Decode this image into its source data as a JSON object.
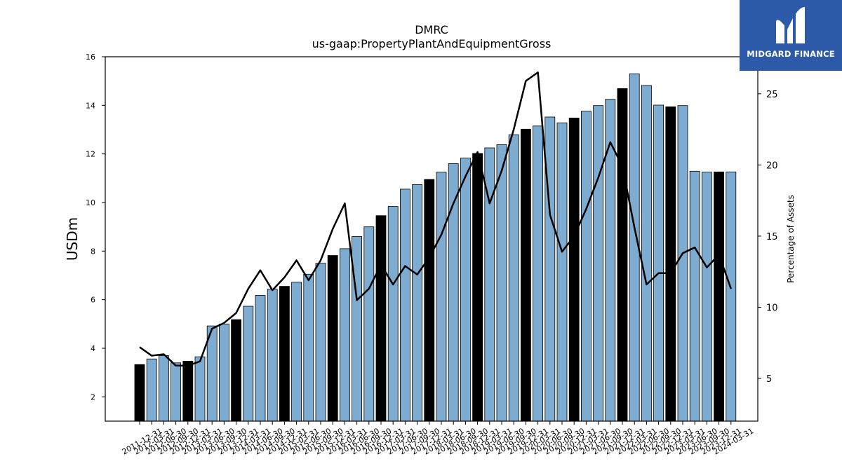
{
  "chart_data": {
    "type": "bar",
    "title": "DMRC",
    "subtitle": "us-gaap:PropertyPlantAndEquipmentGross",
    "ylabel": "USDm",
    "y2label": "Percentage of Assets",
    "ylim": [
      1,
      16
    ],
    "y2lim": [
      2,
      27.6
    ],
    "yticks": [
      2,
      4,
      6,
      8,
      10,
      12,
      14,
      16
    ],
    "y2ticks": [
      5,
      10,
      15,
      20,
      25
    ],
    "grid": false,
    "colors": {
      "bar": "#7eabd0",
      "bar_q4": "#000000",
      "line": "#000000"
    },
    "categories": [
      "2011-12-31",
      "2012-03-31",
      "2012-06-30",
      "2012-09-30",
      "2012-12-31",
      "2013-03-31",
      "2013-06-30",
      "2013-09-30",
      "2013-12-31",
      "2014-03-31",
      "2014-06-30",
      "2014-09-30",
      "2014-12-31",
      "2015-03-31",
      "2015-06-30",
      "2015-09-30",
      "2015-12-31",
      "2016-03-31",
      "2016-06-30",
      "2016-09-30",
      "2016-12-31",
      "2017-03-31",
      "2017-06-30",
      "2017-09-30",
      "2017-12-31",
      "2018-03-31",
      "2018-06-30",
      "2018-09-30",
      "2018-12-31",
      "2019-03-31",
      "2019-06-30",
      "2019-09-30",
      "2019-12-31",
      "2020-03-31",
      "2020-06-30",
      "2020-09-30",
      "2020-12-31",
      "2021-03-31",
      "2021-06-30",
      "2021-09-30",
      "2021-12-31",
      "2022-03-31",
      "2022-06-30",
      "2022-09-30",
      "2022-12-31",
      "2023-03-31",
      "2023-06-30",
      "2023-09-30",
      "2023-12-31",
      "2024-03-31"
    ],
    "series": [
      {
        "axis": "left",
        "values": [
          3.33,
          3.56,
          3.7,
          3.4,
          3.47,
          3.65,
          4.92,
          5.0,
          5.18,
          5.73,
          6.18,
          6.43,
          6.55,
          6.72,
          7.05,
          7.5,
          7.82,
          8.1,
          8.6,
          9.0,
          9.46,
          9.84,
          10.55,
          10.74,
          10.95,
          11.25,
          11.6,
          11.83,
          12.02,
          12.25,
          12.38,
          12.79,
          13.02,
          13.15,
          13.52,
          13.28,
          13.48,
          13.76,
          13.99,
          14.25,
          14.69,
          15.3,
          14.82,
          14.01,
          13.94,
          13.99,
          11.29,
          11.25,
          11.26,
          11.26
        ]
      },
      {
        "axis": "right",
        "type": "line",
        "values": [
          7.2,
          6.6,
          6.7,
          5.9,
          5.9,
          6.2,
          8.5,
          8.9,
          9.6,
          11.3,
          12.6,
          11.2,
          12.1,
          13.3,
          11.9,
          13.3,
          15.5,
          17.3,
          10.5,
          11.3,
          13.0,
          11.6,
          12.9,
          12.3,
          13.5,
          15.1,
          17.3,
          19.2,
          20.9,
          17.3,
          19.6,
          22.5,
          25.9,
          26.5,
          16.5,
          13.9,
          15.0,
          16.9,
          19.1,
          21.6,
          19.9,
          15.6,
          11.6,
          12.4,
          12.4,
          13.8,
          14.2,
          12.8,
          13.7,
          11.3
        ]
      }
    ]
  }
}
